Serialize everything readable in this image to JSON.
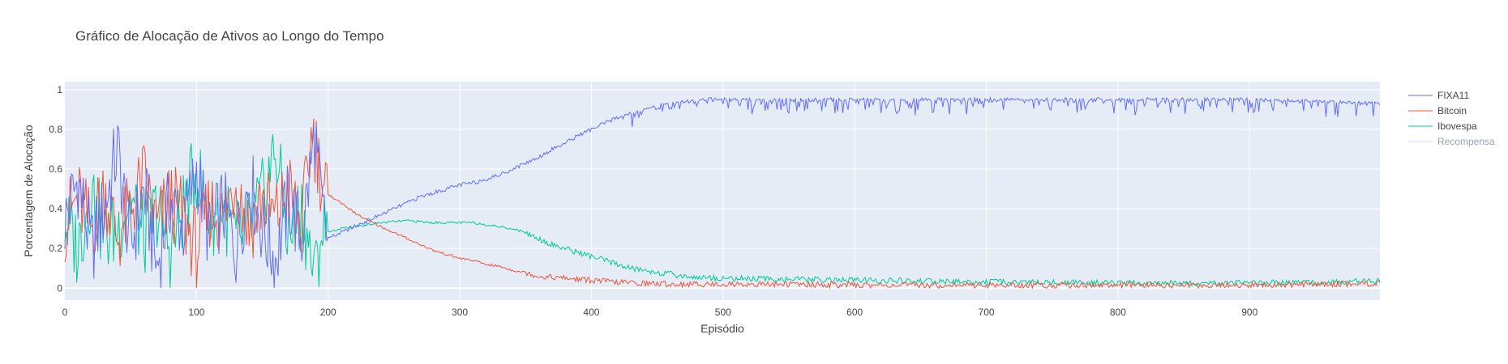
{
  "chart_data": {
    "type": "line",
    "title": "Gráfico de Alocação de Ativos ao Longo do Tempo",
    "xlabel": "Episódio",
    "ylabel": "Porcentagem de Alocação",
    "xlim": [
      0,
      999
    ],
    "ylim": [
      -0.06,
      1.04
    ],
    "x_ticks": [
      0,
      100,
      200,
      300,
      400,
      500,
      600,
      700,
      800,
      900
    ],
    "x_tick_labels": [
      "0",
      "100",
      "200",
      "300",
      "400",
      "500",
      "600",
      "700",
      "800",
      "900"
    ],
    "y_ticks": [
      0,
      0.2,
      0.4,
      0.6,
      0.8,
      1
    ],
    "y_tick_labels": [
      "0",
      "0.2",
      "0.4",
      "0.6",
      "0.8",
      "1"
    ],
    "grid": true,
    "plot_background": "#e5ecf6",
    "legend_position": "right",
    "series": [
      {
        "name": "FIXA11",
        "color": "#636efa",
        "visible": true,
        "points": [
          [
            0,
            0.33
          ],
          [
            10,
            0.55
          ],
          [
            20,
            0.2
          ],
          [
            30,
            0.4
          ],
          [
            40,
            0.7
          ],
          [
            50,
            0.2
          ],
          [
            60,
            0.5
          ],
          [
            70,
            0.1
          ],
          [
            80,
            0.45
          ],
          [
            90,
            0.3
          ],
          [
            100,
            0.6
          ],
          [
            110,
            0.25
          ],
          [
            120,
            0.42
          ],
          [
            130,
            0.2
          ],
          [
            140,
            0.55
          ],
          [
            150,
            0.3
          ],
          [
            160,
            0.15
          ],
          [
            170,
            0.45
          ],
          [
            180,
            0.25
          ],
          [
            190,
            0.78
          ],
          [
            195,
            0.4
          ],
          [
            200,
            0.25
          ],
          [
            210,
            0.28
          ],
          [
            220,
            0.31
          ],
          [
            230,
            0.34
          ],
          [
            240,
            0.37
          ],
          [
            250,
            0.4
          ],
          [
            260,
            0.43
          ],
          [
            270,
            0.46
          ],
          [
            280,
            0.48
          ],
          [
            290,
            0.5
          ],
          [
            300,
            0.52
          ],
          [
            310,
            0.53
          ],
          [
            320,
            0.55
          ],
          [
            330,
            0.57
          ],
          [
            340,
            0.6
          ],
          [
            350,
            0.63
          ],
          [
            360,
            0.66
          ],
          [
            370,
            0.7
          ],
          [
            380,
            0.73
          ],
          [
            390,
            0.77
          ],
          [
            400,
            0.8
          ],
          [
            410,
            0.83
          ],
          [
            420,
            0.86
          ],
          [
            430,
            0.89
          ],
          [
            440,
            0.91
          ],
          [
            450,
            0.93
          ],
          [
            460,
            0.94
          ],
          [
            470,
            0.95
          ],
          [
            480,
            0.955
          ],
          [
            490,
            0.96
          ],
          [
            500,
            0.96
          ],
          [
            550,
            0.96
          ],
          [
            600,
            0.96
          ],
          [
            650,
            0.96
          ],
          [
            700,
            0.96
          ],
          [
            750,
            0.96
          ],
          [
            800,
            0.96
          ],
          [
            850,
            0.96
          ],
          [
            900,
            0.96
          ],
          [
            950,
            0.95
          ],
          [
            999,
            0.94
          ]
        ]
      },
      {
        "name": "Bitcoin",
        "color": "#ef553b",
        "visible": true,
        "points": [
          [
            0,
            0.33
          ],
          [
            10,
            0.45
          ],
          [
            20,
            0.3
          ],
          [
            30,
            0.5
          ],
          [
            40,
            0.25
          ],
          [
            50,
            0.4
          ],
          [
            60,
            0.55
          ],
          [
            70,
            0.3
          ],
          [
            80,
            0.45
          ],
          [
            90,
            0.35
          ],
          [
            100,
            0.2
          ],
          [
            110,
            0.4
          ],
          [
            120,
            0.35
          ],
          [
            130,
            0.55
          ],
          [
            140,
            0.3
          ],
          [
            150,
            0.45
          ],
          [
            160,
            0.35
          ],
          [
            170,
            0.5
          ],
          [
            180,
            0.3
          ],
          [
            188,
            0.81
          ],
          [
            195,
            0.55
          ],
          [
            200,
            0.47
          ],
          [
            210,
            0.43
          ],
          [
            220,
            0.38
          ],
          [
            230,
            0.34
          ],
          [
            240,
            0.31
          ],
          [
            250,
            0.28
          ],
          [
            260,
            0.25
          ],
          [
            270,
            0.22
          ],
          [
            280,
            0.19
          ],
          [
            290,
            0.17
          ],
          [
            300,
            0.15
          ],
          [
            310,
            0.14
          ],
          [
            320,
            0.12
          ],
          [
            330,
            0.11
          ],
          [
            340,
            0.09
          ],
          [
            350,
            0.08
          ],
          [
            360,
            0.06
          ],
          [
            370,
            0.055
          ],
          [
            380,
            0.05
          ],
          [
            390,
            0.045
          ],
          [
            400,
            0.04
          ],
          [
            420,
            0.03
          ],
          [
            440,
            0.025
          ],
          [
            460,
            0.02
          ],
          [
            480,
            0.02
          ],
          [
            500,
            0.02
          ],
          [
            550,
            0.02
          ],
          [
            600,
            0.015
          ],
          [
            650,
            0.015
          ],
          [
            700,
            0.015
          ],
          [
            750,
            0.015
          ],
          [
            800,
            0.015
          ],
          [
            850,
            0.015
          ],
          [
            900,
            0.015
          ],
          [
            950,
            0.02
          ],
          [
            999,
            0.025
          ]
        ]
      },
      {
        "name": "Ibovespa",
        "color": "#00cc96",
        "visible": true,
        "points": [
          [
            0,
            0.33
          ],
          [
            10,
            0.2
          ],
          [
            20,
            0.5
          ],
          [
            30,
            0.25
          ],
          [
            40,
            0.3
          ],
          [
            50,
            0.45
          ],
          [
            60,
            0.25
          ],
          [
            70,
            0.4
          ],
          [
            80,
            0.2
          ],
          [
            90,
            0.4
          ],
          [
            100,
            0.6
          ],
          [
            110,
            0.35
          ],
          [
            120,
            0.4
          ],
          [
            130,
            0.25
          ],
          [
            140,
            0.3
          ],
          [
            150,
            0.45
          ],
          [
            160,
            0.7
          ],
          [
            170,
            0.25
          ],
          [
            180,
            0.4
          ],
          [
            190,
            0.05
          ],
          [
            195,
            0.3
          ],
          [
            200,
            0.28
          ],
          [
            210,
            0.3
          ],
          [
            220,
            0.31
          ],
          [
            230,
            0.32
          ],
          [
            240,
            0.33
          ],
          [
            250,
            0.335
          ],
          [
            260,
            0.34
          ],
          [
            270,
            0.335
          ],
          [
            280,
            0.33
          ],
          [
            290,
            0.33
          ],
          [
            300,
            0.33
          ],
          [
            310,
            0.33
          ],
          [
            320,
            0.32
          ],
          [
            330,
            0.31
          ],
          [
            340,
            0.3
          ],
          [
            350,
            0.28
          ],
          [
            360,
            0.25
          ],
          [
            370,
            0.22
          ],
          [
            380,
            0.2
          ],
          [
            390,
            0.18
          ],
          [
            400,
            0.16
          ],
          [
            410,
            0.14
          ],
          [
            420,
            0.12
          ],
          [
            430,
            0.1
          ],
          [
            440,
            0.09
          ],
          [
            450,
            0.08
          ],
          [
            460,
            0.07
          ],
          [
            470,
            0.06
          ],
          [
            480,
            0.055
          ],
          [
            500,
            0.05
          ],
          [
            550,
            0.045
          ],
          [
            600,
            0.04
          ],
          [
            650,
            0.035
          ],
          [
            700,
            0.03
          ],
          [
            750,
            0.03
          ],
          [
            800,
            0.025
          ],
          [
            850,
            0.025
          ],
          [
            900,
            0.025
          ],
          [
            950,
            0.03
          ],
          [
            999,
            0.035
          ]
        ]
      },
      {
        "name": "Recompensa",
        "color": "#ab63fa",
        "visible": false,
        "points": []
      }
    ]
  }
}
